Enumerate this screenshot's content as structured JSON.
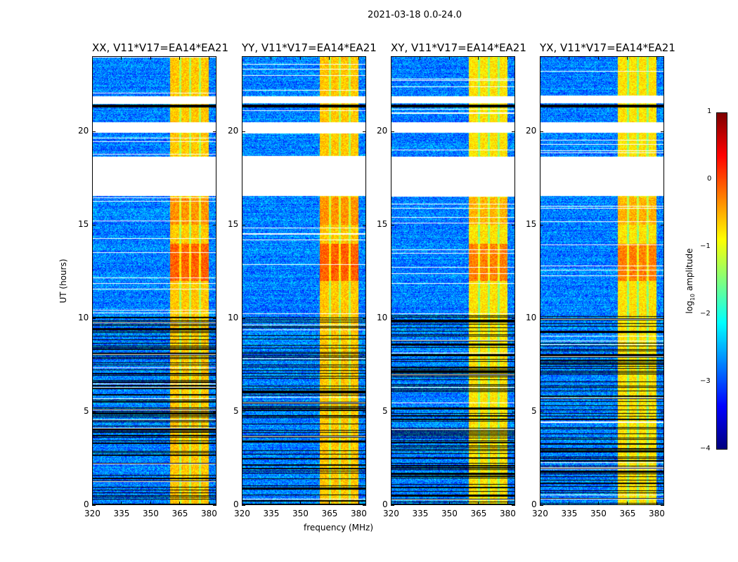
{
  "chart_data": {
    "type": "heatmap",
    "title": "2021-03-18 0.0-24.0",
    "xlabel": "frequency (MHz)",
    "ylabel": "UT (hours)",
    "xlim": [
      320,
      384
    ],
    "ylim": [
      0,
      24
    ],
    "xticks": [
      "320",
      "335",
      "350",
      "365",
      "380"
    ],
    "xtick_values": [
      320,
      335,
      350,
      365,
      380
    ],
    "yticks": [
      "0",
      "5",
      "10",
      "15",
      "20"
    ],
    "ytick_values": [
      0,
      5,
      10,
      15,
      20
    ],
    "panels": [
      {
        "title": "XX, V11*V17=EA14*EA21"
      },
      {
        "title": "YY, V11*V17=EA14*EA21"
      },
      {
        "title": "XY, V11*V17=EA14*EA21"
      },
      {
        "title": "YX, V11*V17=EA14*EA21"
      }
    ],
    "colorbar": {
      "label": "log",
      "label_sub": "10",
      "label_suffix": " amplitude",
      "range": [
        -4,
        1
      ],
      "ticks": [
        "1",
        "0",
        "−1",
        "−2",
        "−3",
        "−4"
      ],
      "tick_values": [
        1,
        0,
        -1,
        -2,
        -3,
        -4
      ],
      "colormap": "jet"
    },
    "structure": {
      "background_log_amplitude": -2.9,
      "bright_band_mhz": [
        360,
        380
      ],
      "bright_band_log_amplitude": -0.6,
      "flagged_gaps_hours": [
        [
          16.55,
          18.65
        ],
        [
          19.95,
          20.5
        ],
        [
          21.55,
          21.9
        ]
      ],
      "dense_flagging_hours": [
        0,
        10.2
      ]
    }
  }
}
